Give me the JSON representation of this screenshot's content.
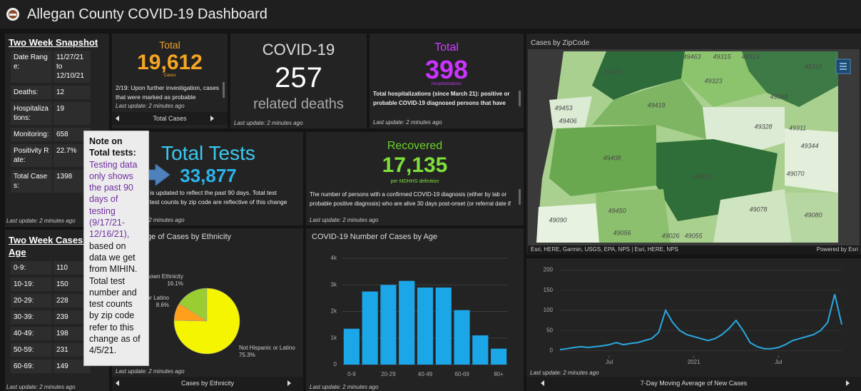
{
  "header": {
    "title": "Allegan County COVID-19 Dashboard"
  },
  "snapshot": {
    "title": "Two Week Snapshot",
    "rows": [
      [
        "Date Range:",
        "11/27/21 to 12/10/21"
      ],
      [
        "Deaths:",
        "12"
      ],
      [
        "Hospitalizations:",
        "19"
      ],
      [
        "Monitoring:",
        "658"
      ],
      [
        "Positivity Rate:",
        "22.7%"
      ],
      [
        "Total Cases:",
        "1398"
      ]
    ],
    "footer": "Last update: 2 minutes ago"
  },
  "age_table": {
    "title": "Two Week Cases by Age",
    "rows": [
      [
        "0-9:",
        "110"
      ],
      [
        "10-19:",
        "150"
      ],
      [
        "20-29:",
        "228"
      ],
      [
        "30-39:",
        "239"
      ],
      [
        "40-49:",
        "198"
      ],
      [
        "50-59:",
        "231"
      ],
      [
        "60-69:",
        "149"
      ]
    ],
    "footer": "Last update: 2 minutes ago"
  },
  "cards": {
    "cases": {
      "label": "Total",
      "value": "19,612",
      "unit": "Cases",
      "text": "2/19: Upon further investigation, cases that were marked as probable",
      "footer": "Last update: 2 minutes ago",
      "nav": "Total Cases"
    },
    "deaths": {
      "label": "COVID-19",
      "value": "257",
      "unit": "related deaths",
      "footer": "Last update: 2 minutes ago"
    },
    "hospitalizations": {
      "label": "Total",
      "value": "398",
      "unit": "Hospitalizations",
      "text": "Total hospitalizations (since March 21): positive or probable COVID-19 diagnosed persons that have been",
      "footer": "Last update: 2 minutes ago"
    },
    "tests": {
      "label": "Total Tests",
      "value": "33,877",
      "text": "Testing data is updated to reflect the past 90 days. Total test number and test counts by zip code are reflective of this change",
      "footer": "Last update: 2 minutes ago"
    },
    "recovered": {
      "label": "Recovered",
      "value": "17,135",
      "unit": "per MDHHS definition",
      "text": "The number of persons with a confirmed COVID-19 diagnosis (either by lab or probable positive diagnosis) who are alive 30 days post-onset (or referral date if",
      "footer": "Last update: 2 minutes ago"
    }
  },
  "note": {
    "title": "Note on Total tests:",
    "highlight": "Testing data only shows the past 90 days of testing (9/17/21-12/16/21),",
    "text": "based on data we get from MIHIN. Total test number and test counts by zip code refer to this change as of 4/5/21."
  },
  "map": {
    "title": "Cases by ZipCode",
    "zip_labels": [
      "49463",
      "49315",
      "49315",
      "49316",
      "49423",
      "49323",
      "49348",
      "49453",
      "49419",
      "49406",
      "49328",
      "49311",
      "49344",
      "49408",
      "49010",
      "49070",
      "49450",
      "49078",
      "49080",
      "49090",
      "49056",
      "49026",
      "49055"
    ],
    "attribution": "Esri, HERE, Garmin, USGS, EPA, NPS | Esri, HERE, NPS",
    "powered_by": "Powered by Esri"
  },
  "chart_data": [
    {
      "type": "pie",
      "title": "Percentage of Cases by Ethnicity",
      "categories": [
        "Unknown Ethnicity",
        "Hispanic or Latino",
        "Not Hispanic or Latino"
      ],
      "values": [
        16.1,
        8.6,
        75.3
      ],
      "value_labels": [
        "16.1%",
        "8.6%",
        "75.3%"
      ],
      "colors": [
        "#9acd32",
        "#ff9f1c",
        "#f5f500"
      ],
      "footer": "Last update: 2 minutes ago",
      "nav": "Cases by Ethnicity"
    },
    {
      "type": "bar",
      "title": "COVID-19 Number of Cases by Age",
      "categories": [
        "0-9",
        null,
        "20-29",
        null,
        "40-49",
        null,
        "60-69",
        null,
        "80+"
      ],
      "values": [
        1350,
        2750,
        3000,
        3150,
        2900,
        2900,
        2050,
        1100,
        600
      ],
      "color": "#1ba6e8",
      "ylim": [
        0,
        4000
      ],
      "yticks": [
        0,
        {
          "value": 1000,
          "label": "1k"
        },
        {
          "value": 2000,
          "label": "2k"
        },
        {
          "value": 3000,
          "label": "3k"
        },
        {
          "value": 4000,
          "label": "4k"
        }
      ],
      "grid": true,
      "footer": "Last update: 2 minutes ago"
    },
    {
      "type": "line",
      "values": [
        3,
        5,
        8,
        10,
        8,
        10,
        12,
        15,
        20,
        15,
        18,
        20,
        25,
        30,
        45,
        100,
        70,
        50,
        40,
        35,
        30,
        25,
        30,
        40,
        55,
        75,
        50,
        20,
        10,
        5,
        5,
        8,
        15,
        25,
        30,
        35,
        40,
        50,
        70,
        140,
        65
      ],
      "color": "#29a8e0",
      "xlim": [
        0,
        40
      ],
      "xticks": [
        {
          "value": 7,
          "label": "Jul"
        },
        {
          "value": 19,
          "label": "2021"
        },
        {
          "value": 31,
          "label": "Jul"
        }
      ],
      "ylim": [
        -15,
        215
      ],
      "yticks": [
        0,
        50,
        100,
        150,
        200
      ],
      "grid": true,
      "footer": "Last update: 2 minutes ago",
      "nav": "7-Day Moving Average of New Cases"
    }
  ]
}
